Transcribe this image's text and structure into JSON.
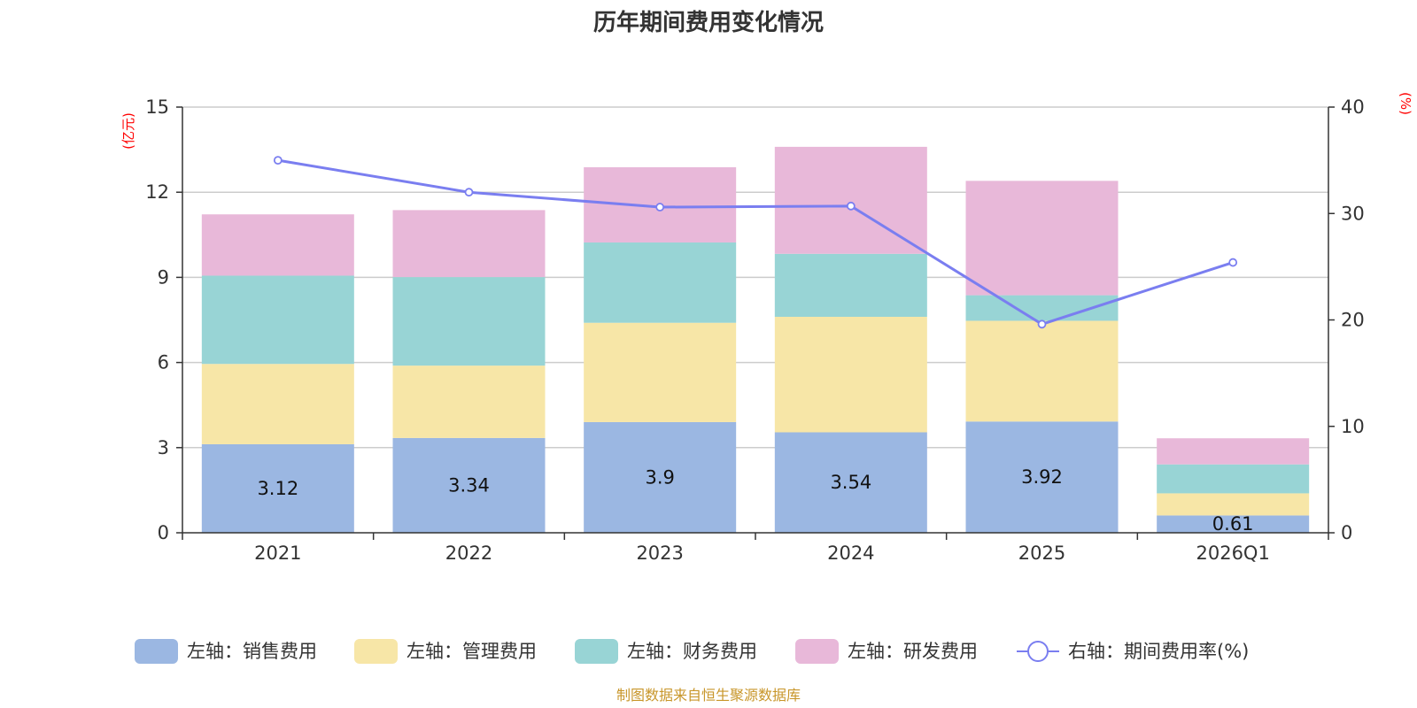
{
  "chart_data": {
    "type": "bar",
    "stacked": true,
    "title": "历年期间费用变化情况",
    "categories": [
      "2021",
      "2022",
      "2023",
      "2024",
      "2025",
      "2026Q1"
    ],
    "left_axis": {
      "unit": "(亿元)",
      "ylim": [
        0,
        15
      ],
      "ticks": [
        "0",
        "3",
        "6",
        "9",
        "12",
        "15"
      ]
    },
    "right_axis": {
      "unit": "(%)",
      "ylim": [
        0,
        40
      ],
      "ticks": [
        "0",
        "10",
        "20",
        "30",
        "40"
      ]
    },
    "series": [
      {
        "name": "左轴：销售费用",
        "axis": "left",
        "color": "#9bb7e2",
        "values": [
          3.12,
          3.34,
          3.9,
          3.54,
          3.92,
          0.61
        ],
        "labels": [
          "3.12",
          "3.34",
          "3.9",
          "3.54",
          "3.92",
          "0.61"
        ]
      },
      {
        "name": "左轴：管理费用",
        "axis": "left",
        "color": "#f7e6a7",
        "values": [
          2.83,
          2.55,
          3.5,
          4.07,
          3.55,
          0.78
        ]
      },
      {
        "name": "左轴：财务费用",
        "axis": "left",
        "color": "#98d4d5",
        "values": [
          3.11,
          3.12,
          2.83,
          2.22,
          0.9,
          1.02
        ]
      },
      {
        "name": "左轴：研发费用",
        "axis": "left",
        "color": "#e8b8d9",
        "values": [
          2.16,
          2.36,
          2.65,
          3.77,
          4.03,
          0.92
        ]
      }
    ],
    "line": {
      "name": "右轴：期间费用率(%)",
      "axis": "right",
      "color": "#7a7ef0",
      "values": [
        35.0,
        32.0,
        30.6,
        30.7,
        19.6,
        25.4
      ]
    },
    "legend_position": "bottom",
    "grid": true
  },
  "footer": {
    "source": "制图数据来自恒生聚源数据库"
  }
}
